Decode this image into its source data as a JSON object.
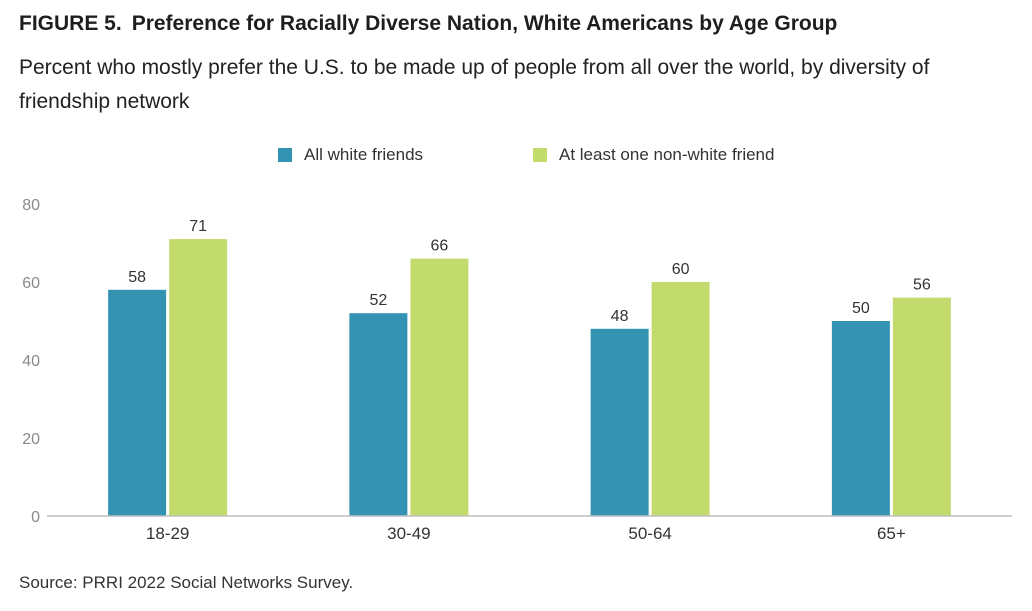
{
  "figure_label": "FIGURE 5.",
  "title": "Preference for Racially Diverse Nation, White Americans by Age Group",
  "subtitle": "Percent who mostly prefer the U.S. to be made up of people from all over the world, by diversity of friendship network",
  "source": "Source: PRRI 2022 Social Networks Survey.",
  "colors": {
    "all_white": "#3493b2",
    "non_white": "#c3da6d",
    "axis": "#bfbfbf",
    "tick_text": "#8a8a8a"
  },
  "chart_data": {
    "type": "bar",
    "categories": [
      "18-29",
      "30-49",
      "50-64",
      "65+"
    ],
    "series": [
      {
        "name": "All white friends",
        "values": [
          58,
          52,
          48,
          50
        ]
      },
      {
        "name": "At least one non-white friend",
        "values": [
          71,
          66,
          60,
          56
        ]
      }
    ],
    "ylim": [
      0,
      80
    ],
    "yticks": [
      0,
      20,
      40,
      60,
      80
    ],
    "grid": false,
    "legend_position": "top-center",
    "data_labels": true
  }
}
